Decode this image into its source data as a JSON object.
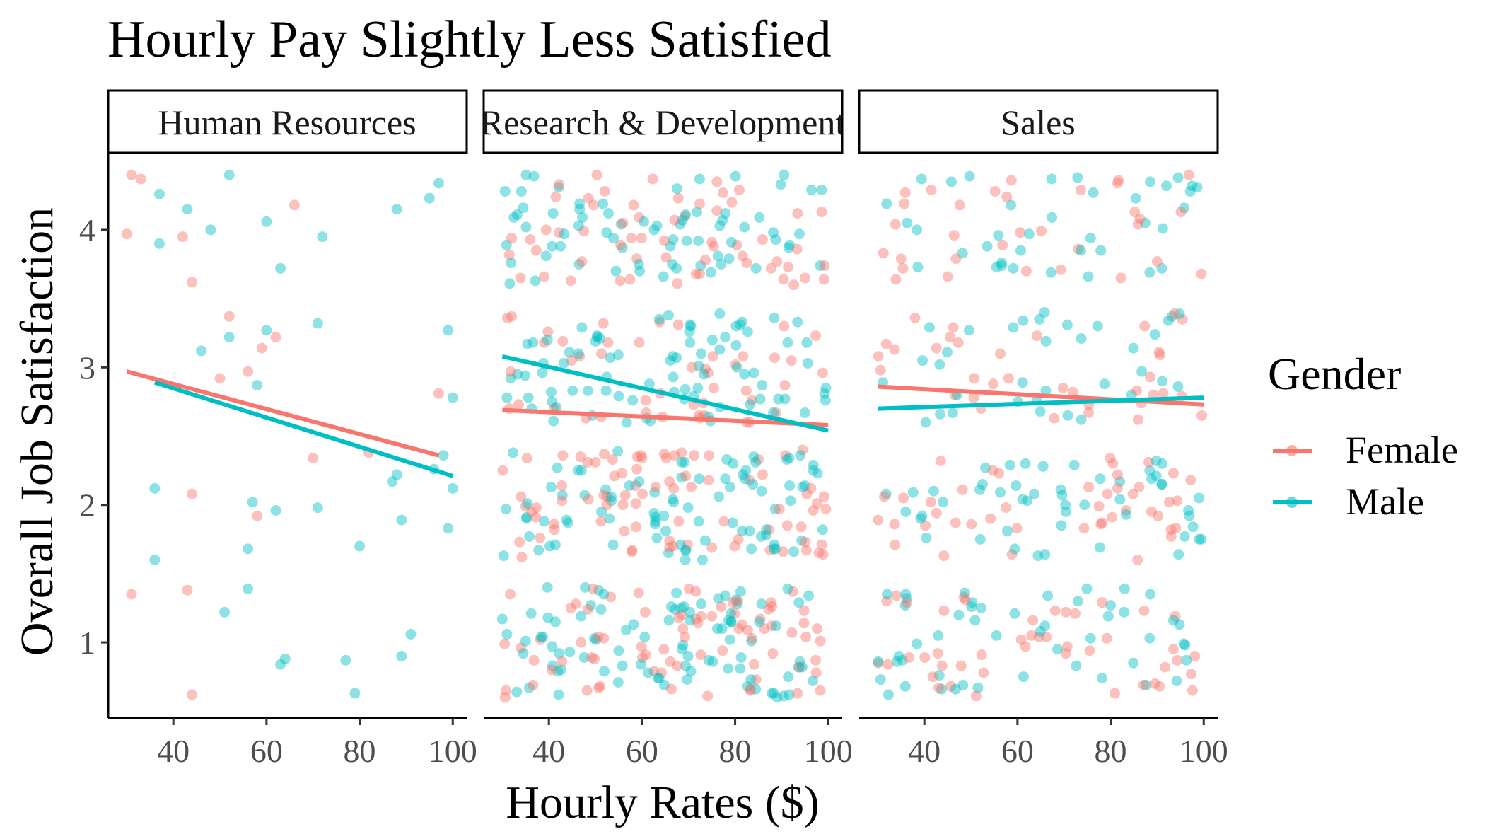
{
  "chart_data": {
    "type": "scatter",
    "title": "Hourly Pay Slightly Less Satisfied",
    "xlabel": "Hourly Rates ($)",
    "ylabel": "Overall Job Satisfaction",
    "xlim": [
      26,
      103
    ],
    "ylim": [
      0.45,
      4.55
    ],
    "x_ticks": [
      40,
      60,
      80,
      100
    ],
    "y_ticks": [
      1,
      2,
      3,
      4
    ],
    "facets": [
      "Human Resources",
      "Research & Development",
      "Sales"
    ],
    "legend": {
      "title": "Gender",
      "position": "right",
      "entries": [
        {
          "label": "Female",
          "color": "#F8766D"
        },
        {
          "label": "Male",
          "color": "#00BFC4"
        }
      ]
    },
    "series": [
      {
        "name": "Female",
        "color": "#F8766D"
      },
      {
        "name": "Male",
        "color": "#00BFC4"
      }
    ],
    "point_alpha": 0.45,
    "jitter": {
      "levels": [
        1,
        2,
        3,
        4
      ],
      "spread": 0.4
    },
    "trend_lines": [
      {
        "facet": "Human Resources",
        "series": "Female",
        "x": [
          30,
          97
        ],
        "y": [
          2.97,
          2.36
        ]
      },
      {
        "facet": "Human Resources",
        "series": "Male",
        "x": [
          36,
          100
        ],
        "y": [
          2.89,
          2.21
        ]
      },
      {
        "facet": "Research & Development",
        "series": "Female",
        "x": [
          30,
          100
        ],
        "y": [
          2.69,
          2.58
        ]
      },
      {
        "facet": "Research & Development",
        "series": "Male",
        "x": [
          30,
          100
        ],
        "y": [
          3.08,
          2.54
        ]
      },
      {
        "facet": "Sales",
        "series": "Female",
        "x": [
          30,
          100
        ],
        "y": [
          2.86,
          2.73
        ]
      },
      {
        "facet": "Sales",
        "series": "Male",
        "x": [
          30,
          100
        ],
        "y": [
          2.7,
          2.78
        ]
      }
    ],
    "points": {
      "Human Resources": [
        [
          30,
          3.97,
          "Female"
        ],
        [
          31,
          4.4,
          "Female"
        ],
        [
          33,
          4.37,
          "Female"
        ],
        [
          37,
          4.26,
          "Male"
        ],
        [
          37,
          3.9,
          "Male"
        ],
        [
          42,
          3.95,
          "Female"
        ],
        [
          43,
          4.15,
          "Male"
        ],
        [
          44,
          3.62,
          "Female"
        ],
        [
          48,
          4.0,
          "Male"
        ],
        [
          52,
          4.4,
          "Male"
        ],
        [
          60,
          4.06,
          "Male"
        ],
        [
          63,
          3.72,
          "Male"
        ],
        [
          66,
          4.18,
          "Female"
        ],
        [
          72,
          3.95,
          "Male"
        ],
        [
          88,
          4.15,
          "Male"
        ],
        [
          95,
          4.23,
          "Male"
        ],
        [
          97,
          4.34,
          "Male"
        ],
        [
          31,
          1.35,
          "Female"
        ],
        [
          43,
          1.38,
          "Female"
        ],
        [
          44,
          0.62,
          "Female"
        ],
        [
          46,
          3.12,
          "Male"
        ],
        [
          52,
          3.37,
          "Female"
        ],
        [
          52,
          3.22,
          "Male"
        ],
        [
          56,
          2.97,
          "Female"
        ],
        [
          58,
          2.87,
          "Male"
        ],
        [
          59,
          3.14,
          "Female"
        ],
        [
          60,
          3.27,
          "Male"
        ],
        [
          62,
          3.22,
          "Female"
        ],
        [
          71,
          3.32,
          "Male"
        ],
        [
          36,
          2.12,
          "Male"
        ],
        [
          36,
          1.6,
          "Male"
        ],
        [
          44,
          2.08,
          "Female"
        ],
        [
          57,
          2.02,
          "Male"
        ],
        [
          58,
          1.92,
          "Female"
        ],
        [
          62,
          1.96,
          "Male"
        ],
        [
          56,
          1.68,
          "Male"
        ],
        [
          56,
          1.39,
          "Male"
        ],
        [
          63,
          0.84,
          "Male"
        ],
        [
          64,
          0.88,
          "Male"
        ],
        [
          70,
          2.34,
          "Female"
        ],
        [
          71,
          1.98,
          "Male"
        ],
        [
          77,
          0.87,
          "Male"
        ],
        [
          80,
          1.7,
          "Male"
        ],
        [
          82,
          2.38,
          "Female"
        ],
        [
          87,
          2.17,
          "Male"
        ],
        [
          88,
          2.22,
          "Male"
        ],
        [
          89,
          1.89,
          "Male"
        ],
        [
          89,
          0.9,
          "Male"
        ],
        [
          91,
          1.06,
          "Male"
        ],
        [
          96,
          2.26,
          "Male"
        ],
        [
          97,
          2.81,
          "Female"
        ],
        [
          99,
          3.27,
          "Male"
        ],
        [
          100,
          2.78,
          "Male"
        ],
        [
          99,
          1.83,
          "Male"
        ],
        [
          100,
          2.12,
          "Male"
        ],
        [
          79,
          0.63,
          "Male"
        ],
        [
          50,
          2.92,
          "Female"
        ],
        [
          51,
          1.22,
          "Male"
        ],
        [
          98,
          2.36,
          "Male"
        ]
      ],
      "Research & Development": {
        "n_per_level": [
          170,
          170,
          130,
          130
        ],
        "male_share": 0.55,
        "seed": 7
      },
      "Sales": {
        "n_per_level": [
          95,
          95,
          70,
          70
        ],
        "male_share": 0.55,
        "seed": 19
      }
    }
  }
}
